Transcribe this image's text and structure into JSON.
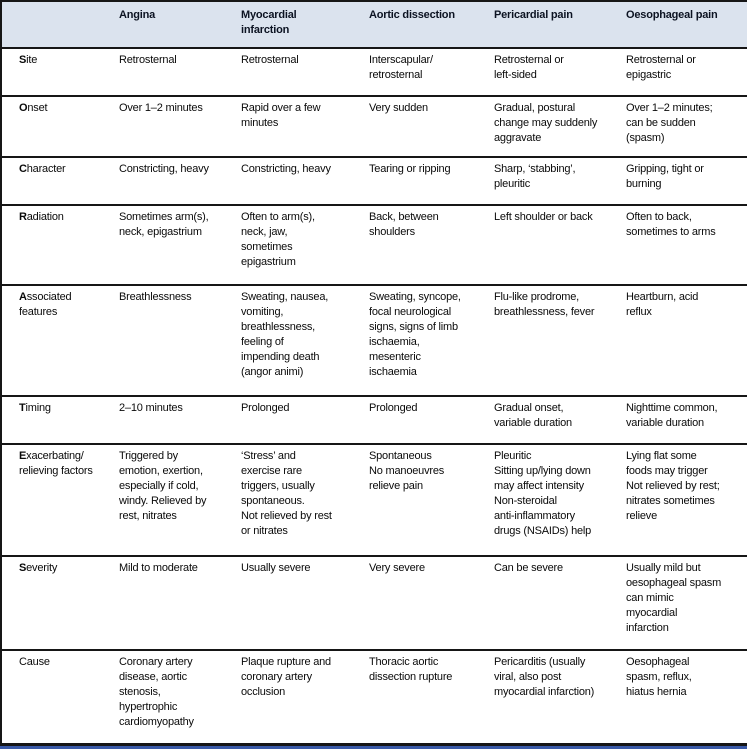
{
  "colors": {
    "header_bg": "#dbe3ee",
    "header_text": "#0c1322",
    "border": "#161616",
    "bottom_bar": "#3a5aa8",
    "body_text": "#0a0a0a",
    "background": "#ffffff"
  },
  "table": {
    "columns": [
      "",
      "Angina",
      "Myocardial\ninfarction",
      "Aortic dissection",
      "Pericardial pain",
      "Oesophageal pain"
    ],
    "rows": [
      {
        "label": "Site",
        "socrates": true,
        "cells": [
          "Retrosternal",
          "Retrosternal",
          "Interscapular/\nretrosternal",
          "Retrosternal or\nleft-sided",
          "Retrosternal or\nepigastric"
        ]
      },
      {
        "label": "Onset",
        "socrates": true,
        "cells": [
          "Over 1–2 minutes",
          "Rapid over a few\nminutes",
          "Very sudden",
          "Gradual, postural\nchange may suddenly\naggravate",
          "Over 1–2 minutes;\ncan be sudden\n(spasm)"
        ]
      },
      {
        "label": "Character",
        "socrates": true,
        "cells": [
          "Constricting, heavy",
          "Constricting, heavy",
          "Tearing or ripping",
          "Sharp, ‘stabbing’,\npleuritic",
          "Gripping, tight or\nburning"
        ]
      },
      {
        "label": "Radiation",
        "socrates": true,
        "cells": [
          "Sometimes arm(s),\nneck, epigastrium",
          "Often to arm(s),\nneck, jaw,\nsometimes\nepigastrium",
          "Back, between\nshoulders",
          "Left shoulder or back",
          "Often to back,\nsometimes to arms"
        ]
      },
      {
        "label": "Associated\nfeatures",
        "socrates": true,
        "cells": [
          "Breathlessness",
          "Sweating, nausea,\nvomiting,\nbreathlessness,\nfeeling of\nimpending death\n(angor animi)",
          "Sweating, syncope,\nfocal neurological\nsigns, signs of limb\nischaemia,\nmesenteric\nischaemia",
          "Flu-like prodrome,\nbreathlessness, fever",
          "Heartburn, acid\nreflux"
        ]
      },
      {
        "label": "Timing",
        "socrates": true,
        "cells": [
          "2–10 minutes",
          "Prolonged",
          "Prolonged",
          "Gradual onset,\nvariable duration",
          "Nighttime common,\nvariable duration"
        ]
      },
      {
        "label": "Exacerbating/\nrelieving factors",
        "socrates": true,
        "cells": [
          "Triggered by\nemotion, exertion,\nespecially if cold,\nwindy. Relieved by\nrest, nitrates",
          "‘Stress’ and\nexercise rare\ntriggers, usually\nspontaneous.\nNot relieved by rest\nor nitrates",
          "Spontaneous\nNo manoeuvres\nrelieve pain",
          "Pleuritic\nSitting up/lying down\nmay affect intensity\nNon-steroidal\nanti-inflammatory\ndrugs (NSAIDs) help",
          "Lying flat some\nfoods may trigger\nNot relieved by rest;\nnitrates sometimes\nrelieve"
        ]
      },
      {
        "label": "Severity",
        "socrates": true,
        "cells": [
          "Mild to moderate",
          "Usually severe",
          "Very severe",
          "Can be severe",
          "Usually mild but\noesophageal spasm\ncan mimic\nmyocardial\ninfarction"
        ]
      },
      {
        "label": "Cause",
        "socrates": false,
        "cells": [
          "Coronary artery\ndisease, aortic\nstenosis,\nhypertrophic\ncardiomyopathy",
          "Plaque rupture and\ncoronary artery\nocclusion",
          "Thoracic aortic\ndissection rupture",
          "Pericarditis (usually\nviral, also post\nmyocardial infarction)",
          "Oesophageal\nspasm, reflux,\nhiatus hernia"
        ]
      }
    ]
  }
}
